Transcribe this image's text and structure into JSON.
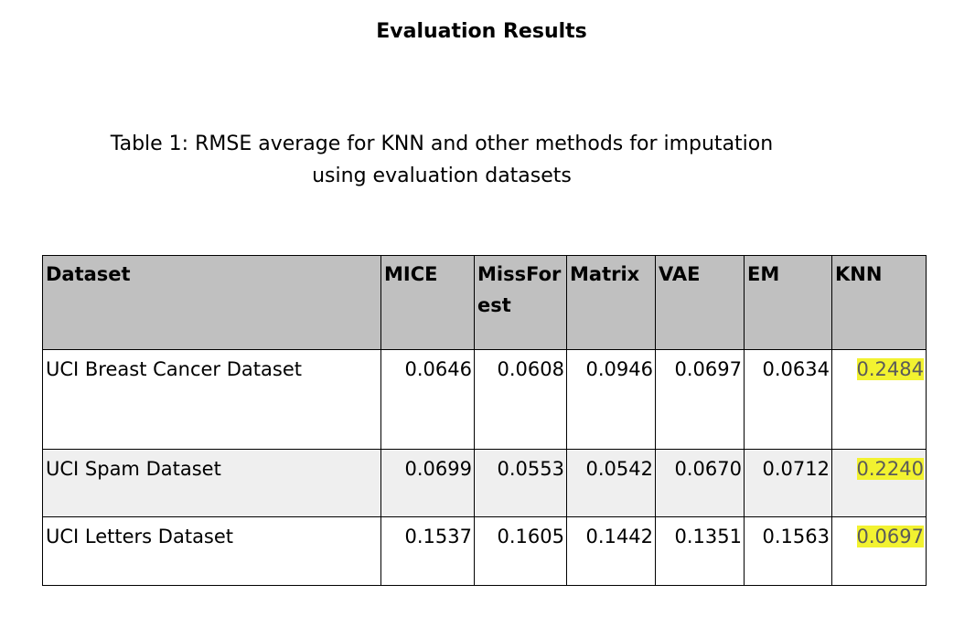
{
  "page": {
    "title": "Evaluation Results"
  },
  "caption": {
    "line1": "Table 1: RMSE average for KNN and other methods for imputation",
    "line2": "using evaluation datasets"
  },
  "table": {
    "headers": [
      "Dataset",
      "MICE",
      "MissForest",
      "Matrix",
      "VAE",
      "EM",
      "KNN"
    ],
    "rows": [
      {
        "dataset": "UCI Breast Cancer Dataset",
        "mice": "0.0646",
        "missforest": "0.0608",
        "matrix": "0.0946",
        "vae": "0.0697",
        "em": "0.0634",
        "knn": "0.2484"
      },
      {
        "dataset": "UCI Spam Dataset",
        "mice": "0.0699",
        "missforest": "0.0553",
        "matrix": "0.0542",
        "vae": "0.0670",
        "em": "0.0712",
        "knn": "0.2240"
      },
      {
        "dataset": "UCI Letters Dataset",
        "mice": "0.1537",
        "missforest": "0.1605",
        "matrix": "0.1442",
        "vae": "0.1351",
        "em": "0.1563",
        "knn": "0.0697"
      }
    ]
  },
  "colors": {
    "header_background": "#c0c0c0",
    "alt_row_background": "#efefef",
    "highlight": "#f2f230",
    "highlight_text": "#5a5a5a",
    "border": "#000000"
  }
}
